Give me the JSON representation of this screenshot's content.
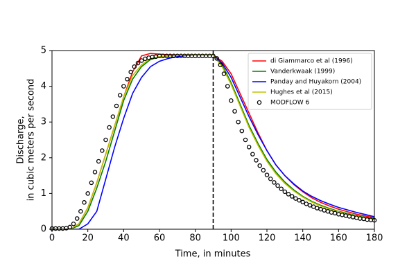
{
  "chart_data": {
    "type": "line",
    "xlabel": "Time, in minutes",
    "ylabel": [
      "Discharge,",
      "in cubic meters per second"
    ],
    "xlim": [
      0,
      180
    ],
    "ylim": [
      0,
      5
    ],
    "xticks": [
      0,
      20,
      40,
      60,
      80,
      100,
      120,
      140,
      160,
      180
    ],
    "yticks": [
      0,
      1,
      2,
      3,
      4,
      5
    ],
    "legend": "upper right",
    "vline": {
      "x": 90,
      "color": "#000000",
      "style": "dashed"
    },
    "series": [
      {
        "name": "di Giammarco et al (1996)",
        "color": "#ff0000",
        "marker": "none",
        "x": [
          0,
          5,
          10,
          15,
          20,
          25,
          30,
          35,
          40,
          45,
          50,
          55,
          60,
          65,
          70,
          75,
          80,
          85,
          90,
          95,
          100,
          105,
          110,
          115,
          120,
          125,
          130,
          135,
          140,
          145,
          150,
          155,
          160,
          165,
          170,
          175,
          180
        ],
        "values": [
          0,
          0,
          0,
          0.15,
          0.6,
          1.3,
          2.1,
          2.9,
          3.7,
          4.4,
          4.85,
          4.92,
          4.9,
          4.88,
          4.87,
          4.87,
          4.87,
          4.87,
          4.87,
          4.7,
          4.35,
          3.8,
          3.25,
          2.7,
          2.2,
          1.8,
          1.5,
          1.25,
          1.05,
          0.88,
          0.75,
          0.65,
          0.56,
          0.49,
          0.42,
          0.37,
          0.32
        ]
      },
      {
        "name": "Vanderkwaak (1999)",
        "color": "#008000",
        "marker": "none",
        "x": [
          0,
          5,
          10,
          15,
          20,
          25,
          30,
          35,
          40,
          45,
          50,
          55,
          60,
          65,
          70,
          75,
          80,
          85,
          90,
          95,
          100,
          105,
          110,
          115,
          120,
          125,
          130,
          135,
          140,
          145,
          150,
          155,
          160,
          165,
          170,
          175,
          180
        ],
        "values": [
          0,
          0,
          0,
          0.1,
          0.5,
          1.15,
          1.9,
          2.75,
          3.6,
          4.2,
          4.55,
          4.75,
          4.82,
          4.85,
          4.86,
          4.87,
          4.87,
          4.87,
          4.87,
          4.6,
          4.1,
          3.5,
          2.9,
          2.4,
          1.95,
          1.6,
          1.32,
          1.1,
          0.92,
          0.78,
          0.67,
          0.58,
          0.5,
          0.44,
          0.38,
          0.33,
          0.29
        ]
      },
      {
        "name": "Panday and Huyakorn (2004)",
        "color": "#0000ff",
        "marker": "none",
        "x": [
          0,
          5,
          10,
          15,
          20,
          25,
          30,
          35,
          40,
          45,
          50,
          55,
          60,
          65,
          70,
          75,
          80,
          85,
          90,
          95,
          100,
          105,
          110,
          115,
          120,
          125,
          130,
          135,
          140,
          145,
          150,
          155,
          160,
          165,
          170,
          175,
          180
        ],
        "values": [
          0,
          0,
          0,
          0,
          0.15,
          0.5,
          1.4,
          2.3,
          3.1,
          3.8,
          4.25,
          4.55,
          4.7,
          4.78,
          4.83,
          4.86,
          4.87,
          4.87,
          4.87,
          4.65,
          4.25,
          3.7,
          3.15,
          2.65,
          2.2,
          1.8,
          1.5,
          1.27,
          1.07,
          0.92,
          0.8,
          0.7,
          0.61,
          0.54,
          0.47,
          0.41,
          0.35
        ]
      },
      {
        "name": "Hughes et al (2015)",
        "color": "#bfbf00",
        "marker": "none",
        "x": [
          0,
          5,
          10,
          15,
          20,
          25,
          30,
          35,
          40,
          45,
          50,
          55,
          60,
          65,
          70,
          75,
          80,
          85,
          90,
          95,
          100,
          105,
          110,
          115,
          120,
          125,
          130,
          135,
          140,
          145,
          150,
          155,
          160,
          165,
          170,
          175,
          180
        ],
        "values": [
          0,
          0,
          0,
          0.15,
          0.6,
          1.3,
          2.1,
          2.9,
          3.7,
          4.3,
          4.6,
          4.78,
          4.83,
          4.85,
          4.86,
          4.87,
          4.87,
          4.87,
          4.87,
          4.55,
          4.05,
          3.45,
          2.85,
          2.35,
          1.9,
          1.55,
          1.28,
          1.07,
          0.9,
          0.76,
          0.65,
          0.56,
          0.49,
          0.42,
          0.37,
          0.32,
          0.28
        ]
      },
      {
        "name": "MODFLOW 6",
        "color": "#000000",
        "marker": "circle",
        "x": [
          0,
          2,
          4,
          6,
          8,
          10,
          12,
          14,
          16,
          18,
          20,
          22,
          24,
          26,
          28,
          30,
          32,
          34,
          36,
          38,
          40,
          42,
          44,
          46,
          48,
          50,
          52,
          54,
          56,
          58,
          60,
          62,
          64,
          66,
          68,
          70,
          72,
          74,
          76,
          78,
          80,
          82,
          84,
          86,
          88,
          90,
          92,
          94,
          96,
          98,
          100,
          102,
          104,
          106,
          108,
          110,
          112,
          114,
          116,
          118,
          120,
          122,
          124,
          126,
          128,
          130,
          132,
          134,
          136,
          138,
          140,
          142,
          144,
          146,
          148,
          150,
          152,
          154,
          156,
          158,
          160,
          162,
          164,
          166,
          168,
          170,
          172,
          174,
          176,
          178,
          180
        ],
        "values": [
          0.02,
          0.02,
          0.02,
          0.02,
          0.03,
          0.06,
          0.15,
          0.3,
          0.5,
          0.75,
          1.0,
          1.3,
          1.6,
          1.9,
          2.2,
          2.5,
          2.85,
          3.15,
          3.45,
          3.75,
          4.0,
          4.2,
          4.4,
          4.55,
          4.65,
          4.72,
          4.77,
          4.8,
          4.82,
          4.83,
          4.85,
          4.85,
          4.85,
          4.85,
          4.85,
          4.85,
          4.85,
          4.85,
          4.85,
          4.85,
          4.85,
          4.85,
          4.85,
          4.85,
          4.85,
          4.85,
          4.78,
          4.6,
          4.35,
          4.0,
          3.6,
          3.3,
          3.0,
          2.75,
          2.5,
          2.3,
          2.1,
          1.93,
          1.78,
          1.65,
          1.52,
          1.41,
          1.31,
          1.22,
          1.13,
          1.05,
          0.98,
          0.92,
          0.86,
          0.81,
          0.76,
          0.71,
          0.67,
          0.63,
          0.59,
          0.56,
          0.53,
          0.5,
          0.47,
          0.45,
          0.42,
          0.4,
          0.38,
          0.36,
          0.34,
          0.32,
          0.3,
          0.29,
          0.27,
          0.26,
          0.25
        ]
      }
    ]
  }
}
